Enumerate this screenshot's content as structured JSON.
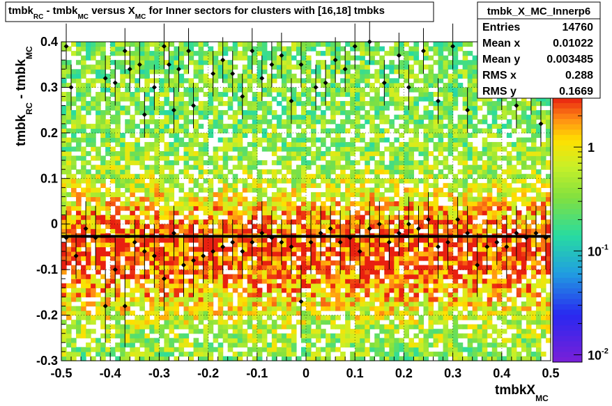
{
  "chart_data": {
    "type": "heatmap",
    "title": {
      "parts": [
        "tmbk",
        "RC",
        " - tmbk",
        "MC",
        " versus X",
        "MC",
        " for Inner sectors for clusters with [16,18] tmbks"
      ]
    },
    "xlabel": {
      "main": "tmbkX",
      "sub": "MC"
    },
    "ylabel": {
      "parts": [
        "tmbk",
        "RC",
        " - tmbk",
        "MC"
      ]
    },
    "xlim": [
      -0.5,
      0.5
    ],
    "ylim": [
      -0.3,
      0.4
    ],
    "x_ticks": [
      "-0.5",
      "-0.4",
      "-0.3",
      "-0.2",
      "-0.1",
      "0",
      "0.1",
      "0.2",
      "0.3",
      "0.4",
      "0.5"
    ],
    "y_ticks": [
      "-0.3",
      "-0.2",
      "-0.1",
      "0",
      "0.1",
      "0.2",
      "0.3",
      "0.4"
    ],
    "x_tick_values": [
      -0.5,
      -0.4,
      -0.3,
      -0.2,
      -0.1,
      0,
      0.1,
      0.2,
      0.3,
      0.4,
      0.5
    ],
    "y_tick_values": [
      -0.3,
      -0.2,
      -0.1,
      0,
      0.1,
      0.2,
      0.3,
      0.4
    ],
    "colorbar": {
      "scale": "log",
      "range": [
        0.0085,
        3.0
      ],
      "tick_labels": [
        {
          "value": 0.01,
          "base": "10",
          "exp": "-2"
        },
        {
          "value": 0.1,
          "base": "10",
          "exp": "-1"
        },
        {
          "value": 1,
          "base": "1",
          "exp": ""
        }
      ]
    },
    "stats_box": {
      "title": "tmbk_X_MC_Innerp6",
      "rows": [
        {
          "label": "Entries",
          "value": "14760"
        },
        {
          "label": "Mean x",
          "value": "0.01022"
        },
        {
          "label": "Mean y",
          "value": "0.003485"
        },
        {
          "label": "RMS x",
          "value": "0.288"
        },
        {
          "label": "RMS y",
          "value": "0.1669"
        }
      ]
    },
    "fit_line": {
      "y": -0.027,
      "color": "#000000"
    },
    "profile": {
      "x": [
        -0.49,
        -0.47,
        -0.45,
        -0.43,
        -0.41,
        -0.39,
        -0.37,
        -0.35,
        -0.33,
        -0.31,
        -0.29,
        -0.27,
        -0.25,
        -0.23,
        -0.21,
        -0.19,
        -0.17,
        -0.15,
        -0.13,
        -0.11,
        -0.09,
        -0.07,
        -0.05,
        -0.03,
        -0.01,
        0.01,
        0.03,
        0.05,
        0.07,
        0.09,
        0.11,
        0.13,
        0.15,
        0.17,
        0.19,
        0.21,
        0.23,
        0.25,
        0.27,
        0.29,
        0.31,
        0.33,
        0.35,
        0.37,
        0.39,
        0.41,
        0.43,
        0.45,
        0.47,
        0.49
      ],
      "y": [
        -0.03,
        -0.07,
        -0.01,
        -0.03,
        -0.18,
        -0.1,
        -0.18,
        -0.04,
        -0.06,
        -0.07,
        -0.12,
        -0.02,
        -0.09,
        -0.08,
        -0.07,
        -0.06,
        -0.05,
        -0.04,
        -0.06,
        -0.04,
        -0.02,
        -0.03,
        -0.04,
        -0.05,
        -0.17,
        -0.04,
        -0.02,
        -0.01,
        -0.04,
        -0.03,
        -0.06,
        -0.01,
        0.0,
        -0.04,
        -0.02,
        0.0,
        -0.01,
        0.01,
        -0.05,
        -0.04,
        0.01,
        -0.02,
        -0.09,
        -0.05,
        -0.04,
        -0.05,
        -0.02,
        -0.03,
        -0.02,
        -0.03
      ],
      "err": [
        0.06,
        0.05,
        0.06,
        0.07,
        0.08,
        0.07,
        0.09,
        0.05,
        0.06,
        0.07,
        0.07,
        0.06,
        0.07,
        0.08,
        0.06,
        0.07,
        0.06,
        0.05,
        0.06,
        0.06,
        0.07,
        0.06,
        0.05,
        0.06,
        0.08,
        0.07,
        0.06,
        0.05,
        0.07,
        0.06,
        0.07,
        0.06,
        0.05,
        0.06,
        0.05,
        0.06,
        0.05,
        0.06,
        0.07,
        0.06,
        0.05,
        0.06,
        0.07,
        0.06,
        0.05,
        0.07,
        0.06,
        0.05,
        0.06,
        0.07
      ]
    },
    "outliers": {
      "x": [
        -0.49,
        -0.48,
        -0.41,
        -0.39,
        -0.37,
        -0.36,
        -0.34,
        -0.33,
        -0.31,
        -0.29,
        -0.28,
        -0.27,
        -0.26,
        -0.24,
        -0.23,
        -0.19,
        -0.17,
        -0.15,
        -0.13,
        -0.11,
        -0.09,
        -0.07,
        -0.05,
        -0.03,
        -0.01,
        0.02,
        0.04,
        0.06,
        0.08,
        0.1,
        0.13,
        0.16,
        0.19,
        0.21,
        0.24,
        0.27,
        0.3,
        0.33,
        0.37,
        0.4,
        0.43,
        0.46,
        0.48
      ],
      "y": [
        0.39,
        0.3,
        0.32,
        0.31,
        0.38,
        0.34,
        0.35,
        0.24,
        0.3,
        0.39,
        0.35,
        0.25,
        0.34,
        0.38,
        0.26,
        0.33,
        0.36,
        0.33,
        0.28,
        0.38,
        0.32,
        0.35,
        0.37,
        0.27,
        0.35,
        0.3,
        0.31,
        0.36,
        0.34,
        0.39,
        0.4,
        0.31,
        0.37,
        0.3,
        0.38,
        0.27,
        0.39,
        0.25,
        0.34,
        0.3,
        0.26,
        0.29,
        0.22
      ]
    },
    "colors": {
      "frame": "#000000",
      "low": "#7b1fd8",
      "mid_low": "#20a0e0",
      "mid": "#80e040",
      "high": "#ffe000",
      "peak": "#e82010"
    }
  }
}
